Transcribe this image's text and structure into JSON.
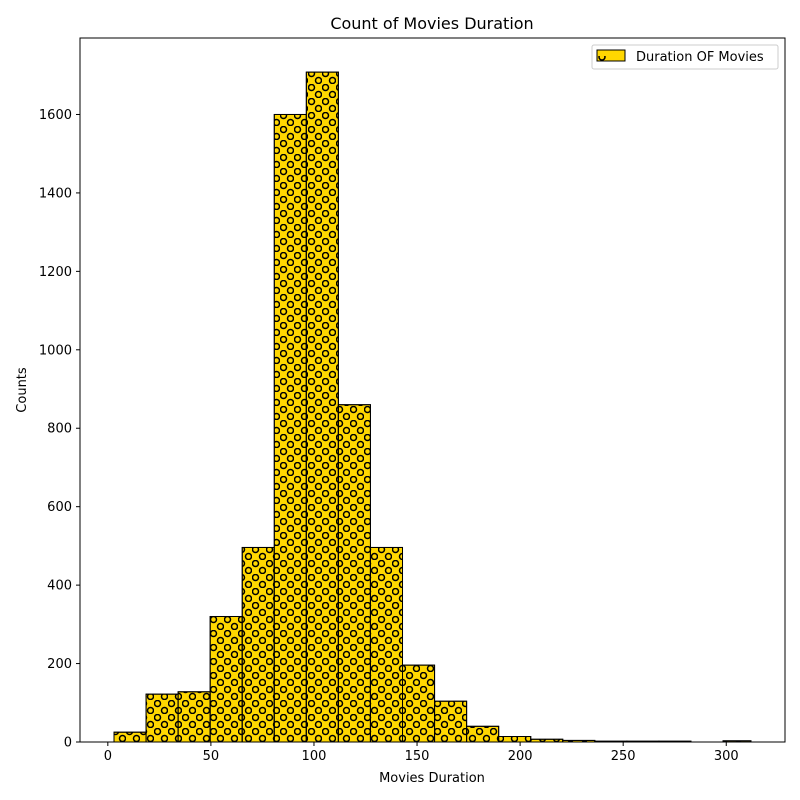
{
  "chart_data": {
    "type": "bar",
    "subtype": "histogram",
    "title": "Count of Movies Duration",
    "xlabel": "Movies Duration",
    "ylabel": "Counts",
    "xlim": [
      -13.5,
      328.5
    ],
    "ylim": [
      0,
      1795
    ],
    "xticks": [
      "0",
      "50",
      "100",
      "150",
      "200",
      "250",
      "300"
    ],
    "yticks": [
      "0",
      "200",
      "400",
      "600",
      "800",
      "1000",
      "1200",
      "1400",
      "1600"
    ],
    "grid": false,
    "legend": {
      "placement": "top-right",
      "entries": [
        "Duration OF Movies"
      ]
    },
    "colors": {
      "fill": "#FFD700",
      "edge": "#000000",
      "hatch": "#000000"
    },
    "hatch": "circles",
    "bin_edges": [
      3,
      18.55,
      34.1,
      49.65,
      65.2,
      80.75,
      96.3,
      111.85,
      127.4,
      142.95,
      158.5,
      174.05,
      189.6,
      205.15,
      220.7,
      236.25,
      251.8,
      267.35,
      282.9,
      298.45,
      312
    ],
    "series": [
      {
        "name": "Duration OF Movies",
        "values": [
          25,
          122,
          128,
          320,
          496,
          1600,
          1708,
          860,
          496,
          196,
          104,
          40,
          14,
          7,
          4,
          2,
          2,
          2,
          0,
          3
        ]
      }
    ]
  }
}
